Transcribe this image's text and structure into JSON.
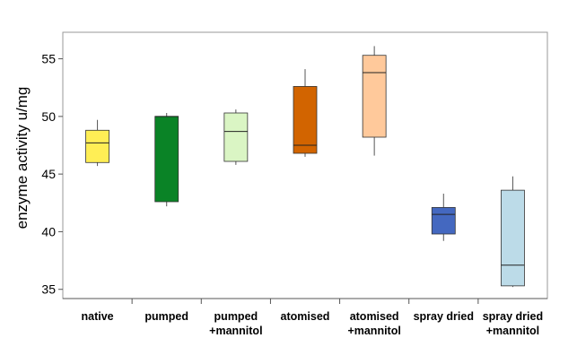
{
  "chart_data": {
    "type": "boxplot",
    "ylabel": "enzyme activity u/mg",
    "ylim": [
      34.2,
      57.3
    ],
    "yticks": [
      35,
      40,
      45,
      50,
      55
    ],
    "legend": "none",
    "grid": false,
    "groups": [
      {
        "label": [
          "native"
        ],
        "color": "#ffee55",
        "min": 45.7,
        "q1": 46.0,
        "median": 47.7,
        "q3": 48.8,
        "max": 49.7
      },
      {
        "label": [
          "pumped"
        ],
        "color": "#0a8326",
        "min": 42.2,
        "q1": 42.6,
        "median": 50.0,
        "q3": 50.0,
        "max": 50.3
      },
      {
        "label": [
          "pumped",
          "+mannitol"
        ],
        "color": "#daf5c4",
        "min": 45.8,
        "q1": 46.1,
        "median": 48.7,
        "q3": 50.3,
        "max": 50.6
      },
      {
        "label": [
          "atomised"
        ],
        "color": "#d26400",
        "min": 46.5,
        "q1": 46.8,
        "median": 47.5,
        "q3": 52.6,
        "max": 54.1
      },
      {
        "label": [
          "atomised",
          "+mannitol"
        ],
        "color": "#ffc99b",
        "min": 46.6,
        "q1": 48.2,
        "median": 53.8,
        "q3": 55.3,
        "max": 56.1
      },
      {
        "label": [
          "spray dried"
        ],
        "color": "#4468c0",
        "min": 39.2,
        "q1": 39.8,
        "median": 41.5,
        "q3": 42.1,
        "max": 43.3
      },
      {
        "label": [
          "spray dried",
          "+mannitol"
        ],
        "color": "#bcdbe8",
        "min": 35.2,
        "q1": 35.3,
        "median": 37.1,
        "q3": 43.6,
        "max": 44.8
      }
    ]
  }
}
